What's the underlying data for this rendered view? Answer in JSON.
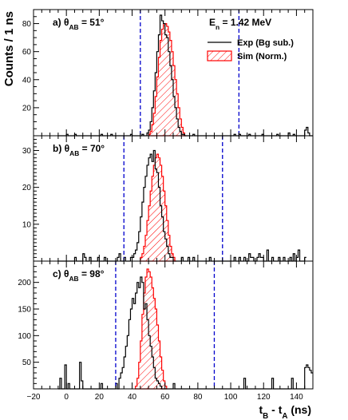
{
  "chart_data": {
    "type": "histogram",
    "x_axis": {
      "label_main": "t",
      "label_sub1": "B",
      "label_mid": " - t",
      "label_sub2": "A",
      "label_unit": " (ns)",
      "range": [
        -20,
        150
      ],
      "ticks": [
        -20,
        0,
        20,
        40,
        60,
        80,
        100,
        120,
        140
      ],
      "tick_labels": [
        "−20",
        "0",
        "20",
        "40",
        "60",
        "80",
        "100",
        "120",
        "140"
      ]
    },
    "y_axis_label": "Counts / 1 ns",
    "energy_label_main": "E",
    "energy_label_sub": "n",
    "energy_label_value": " = 1.42 MeV",
    "legend": [
      {
        "name": "Exp (Bg sub.)",
        "style": "line",
        "color": "#000000"
      },
      {
        "name": "Sim (Norm.)",
        "style": "hatched",
        "color": "#ff0000"
      }
    ],
    "panels": [
      {
        "label_prefix": "a)  θ",
        "label_sub": "AB",
        "label_suffix": " = 51°",
        "ylim": [
          0,
          90
        ],
        "yticks": [
          20,
          40,
          60,
          80
        ],
        "cut_lines": [
          45,
          105
        ],
        "exp": {
          "x0": -5,
          "values": [
            0,
            0,
            0,
            0,
            0,
            1,
            0,
            0,
            0,
            0,
            1,
            0,
            0,
            0,
            0,
            0,
            0,
            0,
            0,
            0,
            0,
            0,
            0,
            0,
            0,
            0,
            1,
            0,
            0,
            0,
            0,
            0,
            1,
            0,
            0,
            0,
            0,
            0,
            0,
            0,
            0,
            0,
            0,
            0,
            1,
            0,
            0,
            0,
            0,
            0,
            0,
            1,
            0,
            0,
            2,
            4,
            10,
            20,
            32,
            45,
            60,
            72,
            86,
            82,
            80,
            72,
            70,
            60,
            50,
            40,
            28,
            20,
            12,
            6,
            3,
            1,
            1,
            0,
            0,
            0,
            0,
            0,
            1,
            0,
            0,
            0,
            0,
            0,
            0,
            0,
            0,
            0,
            0,
            0,
            0,
            0,
            0,
            0,
            0,
            0,
            0,
            0,
            0,
            0,
            0,
            0,
            0,
            1,
            0,
            0,
            1,
            0,
            0,
            0,
            0,
            0,
            1,
            0,
            0,
            0,
            0,
            0,
            0,
            0,
            1,
            0,
            0,
            0,
            0,
            0,
            0,
            0,
            0,
            1,
            0,
            0,
            0,
            0,
            0,
            0,
            2,
            0,
            0,
            1,
            0,
            0,
            0,
            0,
            0,
            0,
            4,
            6,
            2,
            0,
            0
          ]
        },
        "sim": {
          "x0": 50,
          "values": [
            1,
            3,
            8,
            16,
            28,
            42,
            56,
            68,
            76,
            80,
            80,
            78,
            74,
            68,
            60,
            50,
            40,
            30,
            20,
            12,
            6,
            2,
            0
          ]
        }
      },
      {
        "label_prefix": "b)  θ",
        "label_sub": "AB",
        "label_suffix": " = 70°",
        "ylim": [
          0,
          34
        ],
        "yticks": [
          10,
          20,
          30
        ],
        "cut_lines": [
          35,
          95
        ],
        "exp": {
          "x0": -5,
          "values": [
            0,
            0,
            0,
            0,
            0,
            0,
            0,
            0,
            0,
            0,
            1,
            0,
            0,
            0,
            0,
            2,
            1,
            0,
            0,
            1,
            0,
            0,
            0,
            0,
            1,
            0,
            0,
            0,
            1,
            0,
            0,
            0,
            0,
            0,
            0,
            0,
            1,
            2,
            0,
            0,
            1,
            0,
            0,
            0,
            1,
            1,
            2,
            3,
            5,
            8,
            12,
            16,
            20,
            23,
            26,
            28,
            29,
            27,
            30,
            25,
            24,
            20,
            15,
            12,
            8,
            6,
            4,
            2,
            1,
            1,
            0,
            0,
            0,
            0,
            0,
            1,
            0,
            0,
            0,
            1,
            0,
            0,
            1,
            0,
            0,
            0,
            0,
            0,
            0,
            0,
            0,
            0,
            1,
            0,
            0,
            0,
            0,
            0,
            0,
            0,
            0,
            0,
            0,
            0,
            0,
            0,
            0,
            1,
            0,
            0,
            1,
            0,
            0,
            1,
            0,
            0,
            2,
            1,
            1,
            0,
            0,
            1,
            2,
            1,
            1,
            0,
            0,
            3,
            0,
            0,
            1,
            0,
            0,
            0,
            1,
            0,
            0,
            1,
            0,
            0,
            0,
            1,
            0,
            2,
            0,
            1,
            3,
            0,
            0,
            0,
            1
          ]
        },
        "sim": {
          "x0": 45,
          "values": [
            1,
            2,
            4,
            7,
            11,
            15,
            19,
            23,
            26,
            28,
            29,
            28,
            26,
            23,
            19,
            15,
            11,
            7,
            4,
            2,
            1,
            0
          ]
        }
      },
      {
        "label_prefix": "c)  θ",
        "label_sub": "AB",
        "label_suffix": " = 98°",
        "ylim": [
          0,
          240
        ],
        "yticks": [
          50,
          100,
          150,
          200
        ],
        "cut_lines": [
          30,
          90
        ],
        "exp": {
          "x0": -5,
          "values": [
            0,
            20,
            0,
            0,
            45,
            0,
            10,
            0,
            0,
            0,
            0,
            0,
            0,
            50,
            15,
            0,
            0,
            0,
            0,
            0,
            0,
            0,
            0,
            0,
            0,
            0,
            10,
            0,
            0,
            0,
            0,
            0,
            0,
            0,
            0,
            10,
            0,
            20,
            30,
            40,
            60,
            80,
            100,
            130,
            150,
            170,
            160,
            180,
            200,
            190,
            210,
            200,
            150,
            160,
            130,
            100,
            80,
            60,
            40,
            20,
            15,
            10,
            5,
            0,
            0,
            0,
            0,
            0,
            0,
            0,
            10,
            0,
            0,
            0,
            0,
            0,
            0,
            0,
            0,
            0,
            0,
            0,
            0,
            0,
            0,
            0,
            0,
            0,
            0,
            0,
            0,
            0,
            0,
            0,
            0,
            0,
            0,
            0,
            0,
            0,
            0,
            0,
            0,
            0,
            0,
            0,
            0,
            0,
            0,
            0,
            0,
            0,
            0,
            20,
            0,
            0,
            0,
            0,
            0,
            0,
            0,
            0,
            0,
            0,
            0,
            0,
            0,
            0,
            0,
            0,
            20,
            0,
            0,
            0,
            0,
            0,
            0,
            0,
            0,
            0,
            0,
            0,
            20,
            0,
            0,
            0,
            0,
            0,
            0,
            0,
            40,
            45,
            40,
            35,
            30
          ]
        },
        "sim": {
          "x0": 42,
          "values": [
            5,
            20,
            50,
            90,
            140,
            180,
            210,
            225,
            220,
            210,
            190,
            170,
            150,
            120,
            90,
            60,
            35,
            15,
            5
          ]
        }
      }
    ]
  }
}
